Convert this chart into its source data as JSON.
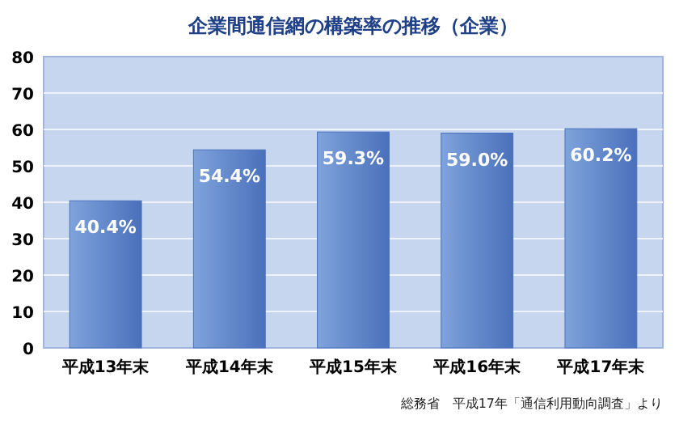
{
  "chart_data": {
    "type": "bar",
    "title": "企業間通信網の構築率の推移（企業）",
    "categories": [
      "平成13年末",
      "平成14年末",
      "平成15年末",
      "平成16年末",
      "平成17年末"
    ],
    "values": [
      40.4,
      54.4,
      59.3,
      59.0,
      60.2
    ],
    "value_labels": [
      "40.4%",
      "54.4%",
      "59.3%",
      "59.0%",
      "60.2%"
    ],
    "color": "#4a70bb",
    "ylim": [
      0,
      80
    ],
    "yticks": [
      0,
      10,
      20,
      30,
      40,
      50,
      60,
      70,
      80
    ],
    "grid": "y",
    "annotations": [
      "総務省　平成17年「通信利用動向調査」より"
    ]
  }
}
